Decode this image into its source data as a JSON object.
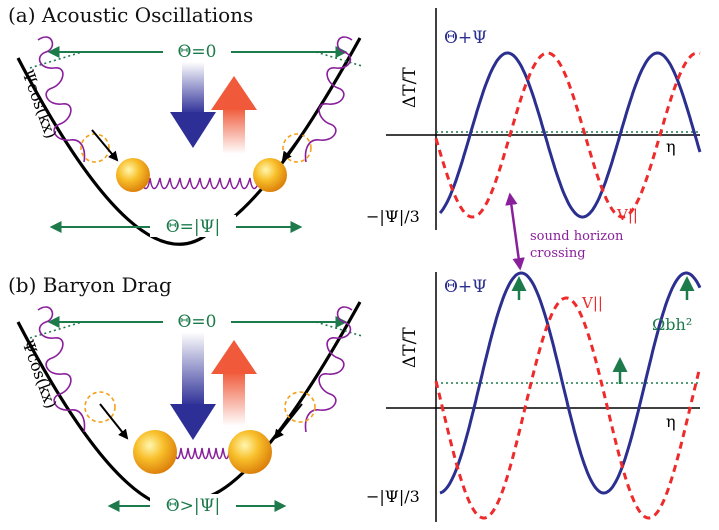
{
  "colors": {
    "green": "#1d7a4a",
    "blue": "#2b2f8f",
    "red": "#ee2a2a",
    "purple": "#8a1f9c",
    "orange": "#f4a21c",
    "black": "#000000"
  },
  "panel_a": {
    "title": "(a) Acoustic Oscillations",
    "theta_top": "Θ=0",
    "theta_bottom": "Θ=|Ψ|",
    "potential_label": "Ψcos(kx)",
    "plot": {
      "ylabel": "ΔT/T",
      "xlabel": "η",
      "series_theta": "Θ+Ψ",
      "series_v": "V||",
      "ytick": "−|Ψ|/3"
    }
  },
  "panel_b": {
    "title": "(b) Baryon Drag",
    "theta_top": "Θ=0",
    "theta_bottom": "Θ>|Ψ|",
    "potential_label": "Ψcos(kx)",
    "plot": {
      "ylabel": "ΔT/T",
      "xlabel": "η",
      "series_theta": "Θ+Ψ",
      "series_v": "V||",
      "ytick": "−|Ψ|/3",
      "omega_label": "Ωbh²"
    }
  },
  "middle_note": {
    "line1": "sound horizon",
    "line2": "crossing"
  },
  "icons": {
    "cooling_arrow": "blue-down-arrow-icon",
    "heating_arrow": "red-up-arrow-icon",
    "ball": "baryon-ball-icon"
  }
}
